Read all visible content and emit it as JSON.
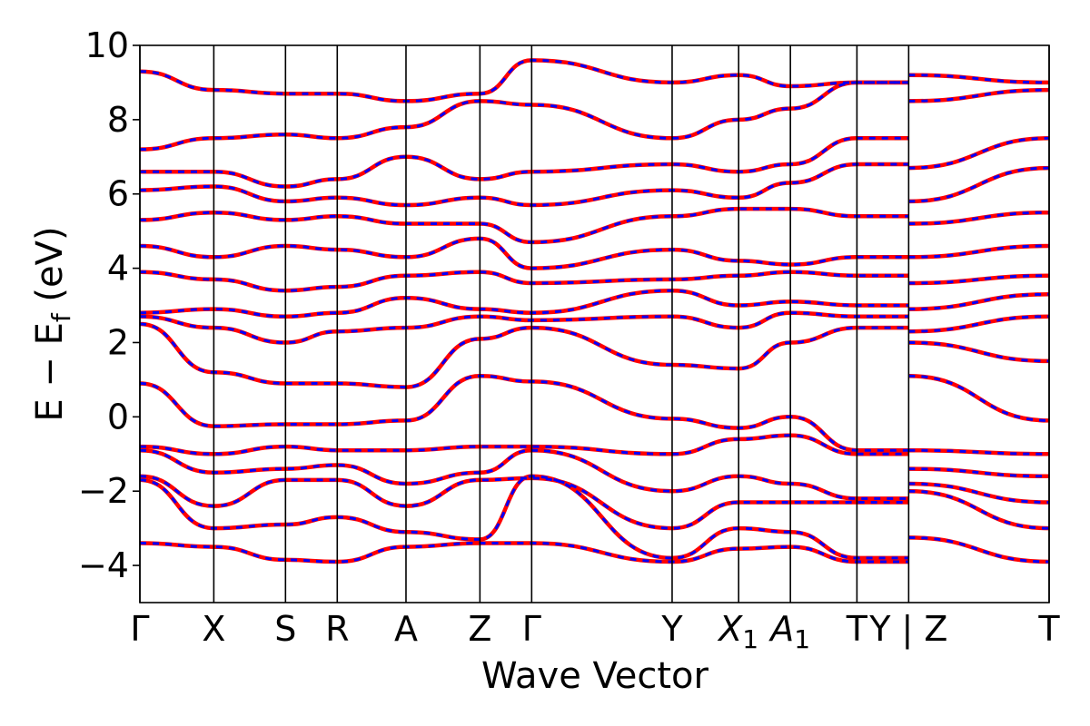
{
  "chart_data": {
    "type": "line",
    "title": "",
    "xlabel": "Wave Vector",
    "ylabel": "E − E",
    "ylabel_sub": "f",
    "ylabel_unit": " (eV)",
    "ylim": [
      -5,
      10
    ],
    "y_ticks": [
      -4,
      -2,
      0,
      2,
      4,
      6,
      8,
      10
    ],
    "y_tick_labels": [
      "−4",
      "−2",
      "0",
      "2",
      "4",
      "6",
      "8",
      "10"
    ],
    "xlim": [
      0,
      12.3
    ],
    "k_points": [
      {
        "x": 0.0,
        "label": "Γ"
      },
      {
        "x": 1.0,
        "label": "X"
      },
      {
        "x": 1.97,
        "label": "S"
      },
      {
        "x": 2.67,
        "label": "R"
      },
      {
        "x": 3.6,
        "label": "A"
      },
      {
        "x": 4.6,
        "label": "Z"
      },
      {
        "x": 5.3,
        "label": "Γ"
      },
      {
        "x": 7.2,
        "label": "Y"
      },
      {
        "x": 8.1,
        "label": "X",
        "sub": "1"
      },
      {
        "x": 8.8,
        "label": "A",
        "sub": "1"
      },
      {
        "x": 9.7,
        "label": "T"
      },
      {
        "x": 10.4,
        "label": "Y | Z"
      },
      {
        "x": 12.3,
        "label": "T"
      }
    ],
    "gap_segment": [
      9.7,
      10.4
    ],
    "grid": false,
    "legend": "none",
    "series": [
      {
        "color": "#ff0000",
        "style": "solid",
        "x": [
          0,
          1.0,
          1.97,
          2.67,
          3.6,
          4.6,
          5.3,
          7.2,
          8.1,
          8.8,
          9.7,
          10.4,
          12.3
        ],
        "values": [
          -3.4,
          -3.5,
          -3.85,
          -3.9,
          -3.5,
          -3.4,
          -3.4,
          -3.9,
          -3.55,
          -3.5,
          -3.9,
          -3.25,
          -3.9
        ]
      },
      {
        "color": "#ff0000",
        "style": "solid",
        "x": [
          0,
          1.0,
          1.97,
          2.67,
          3.6,
          4.6,
          5.3,
          7.2,
          8.1,
          8.8,
          9.7,
          10.4,
          12.3
        ],
        "values": [
          -1.7,
          -3.0,
          -2.9,
          -2.7,
          -3.1,
          -3.3,
          -1.6,
          -3.8,
          -3.0,
          -3.1,
          -3.8,
          -2.0,
          -3.0
        ]
      },
      {
        "color": "#ff0000",
        "style": "solid",
        "x": [
          0,
          1.0,
          1.97,
          2.67,
          3.6,
          4.6,
          5.3,
          7.2,
          8.1,
          8.8,
          9.7,
          10.4,
          12.3
        ],
        "values": [
          -1.6,
          -2.4,
          -1.7,
          -1.7,
          -2.4,
          -1.7,
          -1.65,
          -3.0,
          -2.3,
          -2.3,
          -2.3,
          -1.8,
          -2.3
        ]
      },
      {
        "color": "#ff0000",
        "style": "solid",
        "x": [
          0,
          1.0,
          1.97,
          2.67,
          3.6,
          4.6,
          5.3,
          7.2,
          8.1,
          8.8,
          9.7,
          10.4,
          12.3
        ],
        "values": [
          -0.9,
          -1.5,
          -1.4,
          -1.3,
          -1.8,
          -1.5,
          -0.9,
          -2.0,
          -1.6,
          -1.8,
          -2.2,
          -1.4,
          -1.6
        ]
      },
      {
        "color": "#ff0000",
        "style": "solid",
        "x": [
          0,
          1.0,
          1.97,
          2.67,
          3.6,
          4.6,
          5.3,
          7.2,
          8.1,
          8.8,
          9.7,
          10.4,
          12.3
        ],
        "values": [
          -0.8,
          -1.0,
          -0.8,
          -0.9,
          -0.9,
          -0.8,
          -0.8,
          -1.0,
          -0.6,
          -0.5,
          -1.0,
          -0.9,
          -1.0
        ]
      },
      {
        "color": "#ff0000",
        "style": "solid",
        "x": [
          0,
          1.0,
          1.97,
          2.67,
          3.6,
          4.6,
          5.3,
          7.2,
          8.1,
          8.8,
          9.7,
          10.4,
          12.3
        ],
        "values": [
          0.9,
          -0.25,
          -0.2,
          -0.2,
          -0.1,
          1.1,
          0.95,
          -0.05,
          -0.3,
          0.0,
          -0.9,
          1.1,
          -0.1
        ]
      },
      {
        "color": "#ff0000",
        "style": "solid",
        "x": [
          0,
          1.0,
          1.97,
          2.67,
          3.6,
          4.6,
          5.3,
          7.2,
          8.1,
          8.8,
          9.7,
          10.4,
          12.3
        ],
        "values": [
          2.5,
          1.2,
          0.9,
          0.9,
          0.8,
          2.1,
          2.4,
          1.4,
          1.3,
          2.0,
          2.4,
          2.0,
          1.5
        ]
      },
      {
        "color": "#ff0000",
        "style": "solid",
        "x": [
          0,
          1.0,
          1.97,
          2.67,
          3.6,
          4.6,
          5.3,
          7.2,
          8.1,
          8.8,
          9.7,
          10.4,
          12.3
        ],
        "values": [
          2.7,
          2.4,
          2.0,
          2.3,
          2.4,
          2.7,
          2.6,
          2.7,
          2.4,
          2.8,
          2.7,
          2.3,
          2.7
        ]
      },
      {
        "color": "#ff0000",
        "style": "solid",
        "x": [
          0,
          1.0,
          1.97,
          2.67,
          3.6,
          4.6,
          5.3,
          7.2,
          8.1,
          8.8,
          9.7,
          10.4,
          12.3
        ],
        "values": [
          2.8,
          2.9,
          2.7,
          2.8,
          3.2,
          2.9,
          2.8,
          3.4,
          3.0,
          3.1,
          3.0,
          2.9,
          3.3
        ]
      },
      {
        "color": "#ff0000",
        "style": "solid",
        "x": [
          0,
          1.0,
          1.97,
          2.67,
          3.6,
          4.6,
          5.3,
          7.2,
          8.1,
          8.8,
          9.7,
          10.4,
          12.3
        ],
        "values": [
          3.9,
          3.7,
          3.4,
          3.5,
          3.8,
          3.9,
          3.6,
          3.7,
          3.8,
          3.9,
          3.8,
          3.6,
          3.8
        ]
      },
      {
        "color": "#ff0000",
        "style": "solid",
        "x": [
          0,
          1.0,
          1.97,
          2.67,
          3.6,
          4.6,
          5.3,
          7.2,
          8.1,
          8.8,
          9.7,
          10.4,
          12.3
        ],
        "values": [
          4.6,
          4.3,
          4.6,
          4.5,
          4.3,
          4.8,
          4.0,
          4.5,
          4.2,
          4.1,
          4.3,
          4.3,
          4.6
        ]
      },
      {
        "color": "#ff0000",
        "style": "solid",
        "x": [
          0,
          1.0,
          1.97,
          2.67,
          3.6,
          4.6,
          5.3,
          7.2,
          8.1,
          8.8,
          9.7,
          10.4,
          12.3
        ],
        "values": [
          5.3,
          5.5,
          5.3,
          5.4,
          5.2,
          5.2,
          4.7,
          5.4,
          5.6,
          5.6,
          5.4,
          5.2,
          5.5
        ]
      },
      {
        "color": "#ff0000",
        "style": "solid",
        "x": [
          0,
          1.0,
          1.97,
          2.67,
          3.6,
          4.6,
          5.3,
          7.2,
          8.1,
          8.8,
          9.7,
          10.4,
          12.3
        ],
        "values": [
          6.1,
          6.2,
          5.8,
          5.9,
          5.7,
          5.9,
          5.7,
          6.1,
          5.9,
          6.3,
          6.8,
          5.8,
          6.7
        ]
      },
      {
        "color": "#ff0000",
        "style": "solid",
        "x": [
          0,
          1.0,
          1.97,
          2.67,
          3.6,
          4.6,
          5.3,
          7.2,
          8.1,
          8.8,
          9.7,
          10.4,
          12.3
        ],
        "values": [
          6.6,
          6.6,
          6.2,
          6.4,
          7.0,
          6.4,
          6.6,
          6.8,
          6.6,
          6.8,
          7.5,
          6.7,
          7.5
        ]
      },
      {
        "color": "#ff0000",
        "style": "solid",
        "x": [
          0,
          1.0,
          1.97,
          2.67,
          3.6,
          4.6,
          5.3,
          7.2,
          8.1,
          8.8,
          9.7,
          10.4,
          12.3
        ],
        "values": [
          7.2,
          7.5,
          7.6,
          7.5,
          7.8,
          8.5,
          8.4,
          7.5,
          8.0,
          8.3,
          9.0,
          8.5,
          8.8
        ]
      },
      {
        "color": "#ff0000",
        "style": "solid",
        "x": [
          0,
          1.0,
          1.97,
          2.67,
          3.6,
          4.6,
          5.3,
          7.2,
          8.1,
          8.8,
          9.7,
          10.4,
          12.3
        ],
        "values": [
          9.3,
          8.8,
          8.7,
          8.7,
          8.5,
          8.7,
          9.6,
          9.0,
          9.2,
          8.9,
          9.0,
          9.2,
          9.0
        ]
      },
      {
        "color": "#0000ff",
        "style": "dashed",
        "x": [
          0,
          1.0,
          1.97,
          2.67,
          3.6,
          4.6,
          5.3,
          7.2,
          8.1,
          8.8,
          9.7,
          10.4,
          12.3
        ],
        "values": [
          -3.4,
          -3.5,
          -3.85,
          -3.9,
          -3.5,
          -3.4,
          -3.4,
          -3.9,
          -3.55,
          -3.5,
          -3.9,
          -3.25,
          -3.9
        ]
      },
      {
        "color": "#0000ff",
        "style": "dashed",
        "x": [
          0,
          1.0,
          1.97,
          2.67,
          3.6,
          4.6,
          5.3,
          7.2,
          8.1,
          8.8,
          9.7,
          10.4,
          12.3
        ],
        "values": [
          -1.7,
          -3.0,
          -2.9,
          -2.7,
          -3.1,
          -3.3,
          -1.6,
          -3.8,
          -3.0,
          -3.1,
          -3.8,
          -2.0,
          -3.0
        ]
      },
      {
        "color": "#0000ff",
        "style": "dashed",
        "x": [
          0,
          1.0,
          1.97,
          2.67,
          3.6,
          4.6,
          5.3,
          7.2,
          8.1,
          8.8,
          9.7,
          10.4,
          12.3
        ],
        "values": [
          -1.6,
          -2.4,
          -1.7,
          -1.7,
          -2.4,
          -1.7,
          -1.65,
          -3.0,
          -2.3,
          -2.3,
          -2.3,
          -1.8,
          -2.3
        ]
      },
      {
        "color": "#0000ff",
        "style": "dashed",
        "x": [
          0,
          1.0,
          1.97,
          2.67,
          3.6,
          4.6,
          5.3,
          7.2,
          8.1,
          8.8,
          9.7,
          10.4,
          12.3
        ],
        "values": [
          -0.9,
          -1.5,
          -1.4,
          -1.3,
          -1.8,
          -1.5,
          -0.9,
          -2.0,
          -1.6,
          -1.8,
          -2.2,
          -1.4,
          -1.6
        ]
      },
      {
        "color": "#0000ff",
        "style": "dashed",
        "x": [
          0,
          1.0,
          1.97,
          2.67,
          3.6,
          4.6,
          5.3,
          7.2,
          8.1,
          8.8,
          9.7,
          10.4,
          12.3
        ],
        "values": [
          -0.8,
          -1.0,
          -0.8,
          -0.9,
          -0.9,
          -0.8,
          -0.8,
          -1.0,
          -0.6,
          -0.5,
          -1.0,
          -0.9,
          -1.0
        ]
      },
      {
        "color": "#0000ff",
        "style": "dashed",
        "x": [
          0,
          1.0,
          1.97,
          2.67,
          3.6,
          4.6,
          5.3,
          7.2,
          8.1,
          8.8,
          9.7,
          10.4,
          12.3
        ],
        "values": [
          0.9,
          -0.25,
          -0.2,
          -0.2,
          -0.1,
          1.1,
          0.95,
          -0.05,
          -0.3,
          0.0,
          -0.9,
          1.1,
          -0.1
        ]
      },
      {
        "color": "#0000ff",
        "style": "dashed",
        "x": [
          0,
          1.0,
          1.97,
          2.67,
          3.6,
          4.6,
          5.3,
          7.2,
          8.1,
          8.8,
          9.7,
          10.4,
          12.3
        ],
        "values": [
          2.5,
          1.2,
          0.9,
          0.9,
          0.8,
          2.1,
          2.4,
          1.4,
          1.3,
          2.0,
          2.4,
          2.0,
          1.5
        ]
      },
      {
        "color": "#0000ff",
        "style": "dashed",
        "x": [
          0,
          1.0,
          1.97,
          2.67,
          3.6,
          4.6,
          5.3,
          7.2,
          8.1,
          8.8,
          9.7,
          10.4,
          12.3
        ],
        "values": [
          2.7,
          2.4,
          2.0,
          2.3,
          2.4,
          2.7,
          2.6,
          2.7,
          2.4,
          2.8,
          2.7,
          2.3,
          2.7
        ]
      },
      {
        "color": "#0000ff",
        "style": "dashed",
        "x": [
          0,
          1.0,
          1.97,
          2.67,
          3.6,
          4.6,
          5.3,
          7.2,
          8.1,
          8.8,
          9.7,
          10.4,
          12.3
        ],
        "values": [
          2.8,
          2.9,
          2.7,
          2.8,
          3.2,
          2.9,
          2.8,
          3.4,
          3.0,
          3.1,
          3.0,
          2.9,
          3.3
        ]
      },
      {
        "color": "#0000ff",
        "style": "dashed",
        "x": [
          0,
          1.0,
          1.97,
          2.67,
          3.6,
          4.6,
          5.3,
          7.2,
          8.1,
          8.8,
          9.7,
          10.4,
          12.3
        ],
        "values": [
          3.9,
          3.7,
          3.4,
          3.5,
          3.8,
          3.9,
          3.6,
          3.7,
          3.8,
          3.9,
          3.8,
          3.6,
          3.8
        ]
      },
      {
        "color": "#0000ff",
        "style": "dashed",
        "x": [
          0,
          1.0,
          1.97,
          2.67,
          3.6,
          4.6,
          5.3,
          7.2,
          8.1,
          8.8,
          9.7,
          10.4,
          12.3
        ],
        "values": [
          4.6,
          4.3,
          4.6,
          4.5,
          4.3,
          4.8,
          4.0,
          4.5,
          4.2,
          4.1,
          4.3,
          4.3,
          4.6
        ]
      },
      {
        "color": "#0000ff",
        "style": "dashed",
        "x": [
          0,
          1.0,
          1.97,
          2.67,
          3.6,
          4.6,
          5.3,
          7.2,
          8.1,
          8.8,
          9.7,
          10.4,
          12.3
        ],
        "values": [
          5.3,
          5.5,
          5.3,
          5.4,
          5.2,
          5.2,
          4.7,
          5.4,
          5.6,
          5.6,
          5.4,
          5.2,
          5.5
        ]
      },
      {
        "color": "#0000ff",
        "style": "dashed",
        "x": [
          0,
          1.0,
          1.97,
          2.67,
          3.6,
          4.6,
          5.3,
          7.2,
          8.1,
          8.8,
          9.7,
          10.4,
          12.3
        ],
        "values": [
          6.1,
          6.2,
          5.8,
          5.9,
          5.7,
          5.9,
          5.7,
          6.1,
          5.9,
          6.3,
          6.8,
          5.8,
          6.7
        ]
      },
      {
        "color": "#0000ff",
        "style": "dashed",
        "x": [
          0,
          1.0,
          1.97,
          2.67,
          3.6,
          4.6,
          5.3,
          7.2,
          8.1,
          8.8,
          9.7,
          10.4,
          12.3
        ],
        "values": [
          6.6,
          6.6,
          6.2,
          6.4,
          7.0,
          6.4,
          6.6,
          6.8,
          6.6,
          6.8,
          7.5,
          6.7,
          7.5
        ]
      },
      {
        "color": "#0000ff",
        "style": "dashed",
        "x": [
          0,
          1.0,
          1.97,
          2.67,
          3.6,
          4.6,
          5.3,
          7.2,
          8.1,
          8.8,
          9.7,
          10.4,
          12.3
        ],
        "values": [
          7.2,
          7.5,
          7.6,
          7.5,
          7.8,
          8.5,
          8.4,
          7.5,
          8.0,
          8.3,
          9.0,
          8.5,
          8.8
        ]
      },
      {
        "color": "#0000ff",
        "style": "dashed",
        "x": [
          0,
          1.0,
          1.97,
          2.67,
          3.6,
          4.6,
          5.3,
          7.2,
          8.1,
          8.8,
          9.7,
          10.4,
          12.3
        ],
        "values": [
          9.3,
          8.8,
          8.7,
          8.7,
          8.5,
          8.7,
          9.6,
          9.0,
          9.2,
          8.9,
          9.0,
          9.2,
          9.0
        ]
      }
    ]
  }
}
